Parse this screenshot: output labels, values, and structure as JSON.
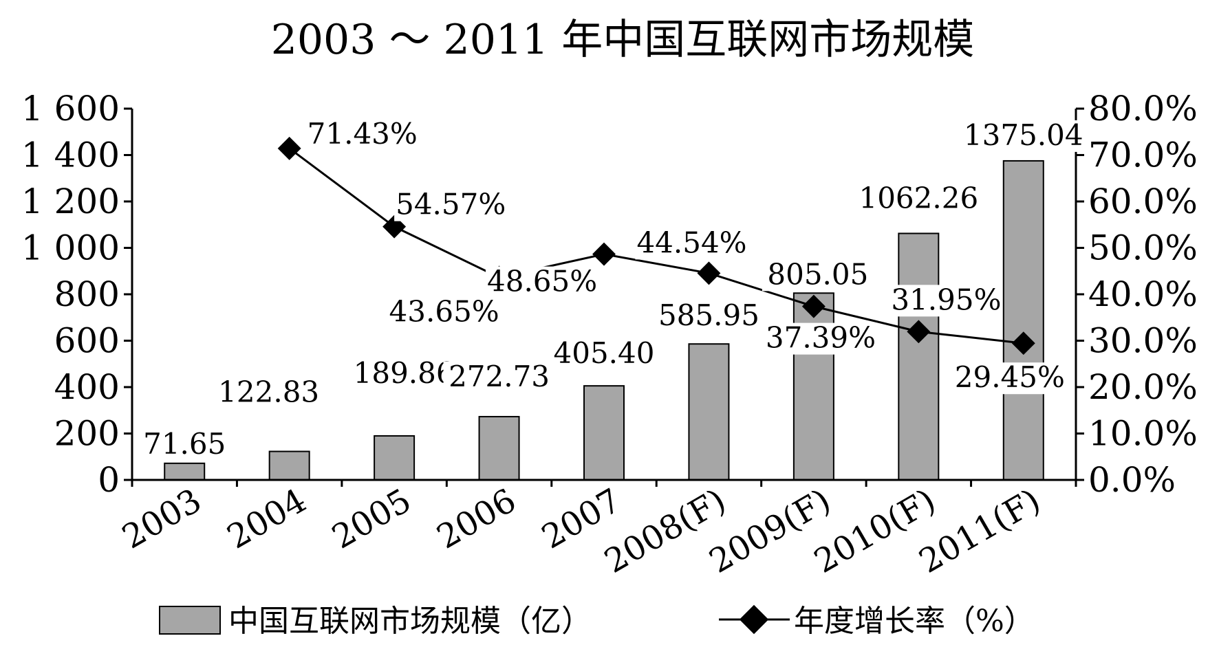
{
  "chart_data": {
    "type": "bar",
    "title": "2003 ～ 2011 年中国互联网市场规模",
    "categories": [
      "2003",
      "2004",
      "2005",
      "2006",
      "2007",
      "2008(F)",
      "2009(F)",
      "2010(F)",
      "2011(F)"
    ],
    "series": [
      {
        "name": "中国互联网市场规模（亿）",
        "type": "bar",
        "axis": "left",
        "values": [
          71.65,
          122.83,
          189.86,
          272.73,
          405.4,
          585.95,
          805.05,
          1062.26,
          1375.04
        ],
        "labels": [
          "71.65",
          "122.83",
          "189.86",
          "272.73",
          "405.40",
          "585.95",
          "805.05",
          "1062.26",
          "1375.04"
        ],
        "color": "#a6a6a6"
      },
      {
        "name": "年度增长率（%）",
        "type": "line",
        "axis": "right",
        "values": [
          null,
          71.43,
          54.57,
          43.65,
          48.65,
          44.54,
          37.39,
          31.95,
          29.45
        ],
        "labels": [
          "",
          "71.43%",
          "54.57%",
          "43.65%",
          "48.65%",
          "44.54%",
          "37.39%",
          "31.95%",
          "29.45%"
        ],
        "color": "#000000"
      }
    ],
    "y_left": {
      "range": [
        0,
        1600
      ],
      "ticks": [
        0,
        200,
        400,
        600,
        800,
        1000,
        1200,
        1400,
        1600
      ],
      "tick_labels": [
        "0",
        "200",
        "400",
        "600",
        "800",
        "1 000",
        "1 200",
        "1 400",
        "1 600"
      ]
    },
    "y_right": {
      "range": [
        0,
        80
      ],
      "ticks": [
        0,
        10,
        20,
        30,
        40,
        50,
        60,
        70,
        80
      ],
      "tick_labels": [
        "0.0%",
        "10.0%",
        "20.0%",
        "30.0%",
        "40.0%",
        "50.0%",
        "60.0%",
        "70.0%",
        "80.0%"
      ]
    },
    "grid": false,
    "legend_position": "bottom"
  }
}
